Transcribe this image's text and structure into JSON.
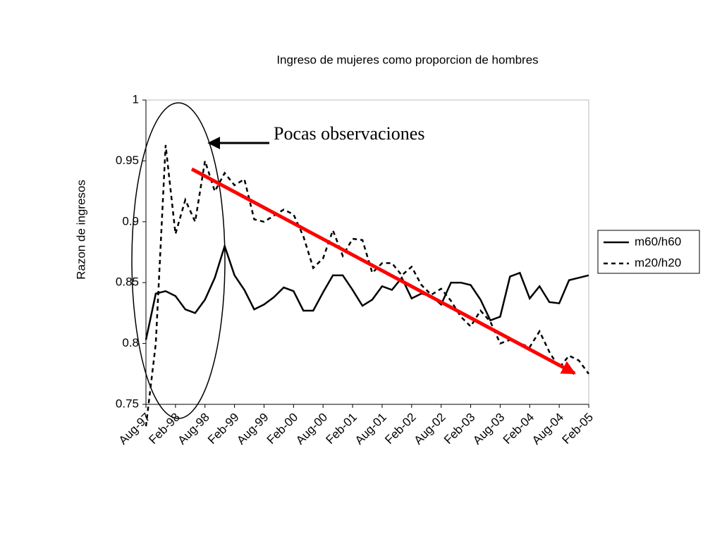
{
  "chart_data": {
    "type": "line",
    "title": "Ingreso de mujeres como proporcion de hombres",
    "y_label": "Razon de ingresos",
    "annotation": "Pocas observaciones",
    "categories": [
      "Aug-97",
      null,
      null,
      "Feb-98",
      null,
      null,
      "Aug-98",
      null,
      null,
      "Feb-99",
      null,
      null,
      "Aug-99",
      null,
      null,
      "Feb-00",
      null,
      null,
      "Aug-00",
      null,
      null,
      "Feb-01",
      null,
      null,
      "Aug-01",
      null,
      null,
      "Feb-02",
      null,
      null,
      "Aug-02",
      null,
      null,
      "Feb-03",
      null,
      null,
      "Aug-03",
      null,
      null,
      "Feb-04",
      null,
      null,
      "Aug-04",
      null,
      null,
      "Feb-05"
    ],
    "series": [
      {
        "name": "m60/h60",
        "color": "#000000",
        "line_style": "solid",
        "values": [
          0.803,
          0.841,
          0.843,
          0.839,
          0.828,
          0.825,
          0.836,
          0.854,
          0.88,
          0.856,
          0.844,
          0.828,
          0.832,
          0.838,
          0.846,
          0.843,
          0.827,
          0.827,
          0.842,
          0.856,
          0.856,
          0.844,
          0.831,
          0.836,
          0.847,
          0.844,
          0.854,
          0.837,
          0.841,
          0.839,
          0.832,
          0.85,
          0.85,
          0.848,
          0.836,
          0.819,
          0.822,
          0.855,
          0.858,
          0.837,
          0.847,
          0.834,
          0.833,
          0.852,
          0.854,
          0.856
        ]
      },
      {
        "name": "m20/h20",
        "color": "#000000",
        "line_style": "dashed",
        "values": [
          0.732,
          0.8,
          0.963,
          0.89,
          0.918,
          0.9,
          0.95,
          0.925,
          0.94,
          0.93,
          0.935,
          0.902,
          0.9,
          0.905,
          0.91,
          0.906,
          0.888,
          0.862,
          0.87,
          0.893,
          0.872,
          0.886,
          0.885,
          0.858,
          0.866,
          0.866,
          0.856,
          0.863,
          0.848,
          0.84,
          0.845,
          0.835,
          0.822,
          0.814,
          0.827,
          0.818,
          0.8,
          0.803,
          0.8,
          0.797,
          0.81,
          0.793,
          0.78,
          0.79,
          0.786,
          0.775
        ]
      }
    ],
    "ylim": [
      0.75,
      1
    ],
    "yticks": [
      0.75,
      0.8,
      0.85,
      0.9,
      0.95,
      1
    ],
    "grid": false,
    "legend": "right"
  }
}
